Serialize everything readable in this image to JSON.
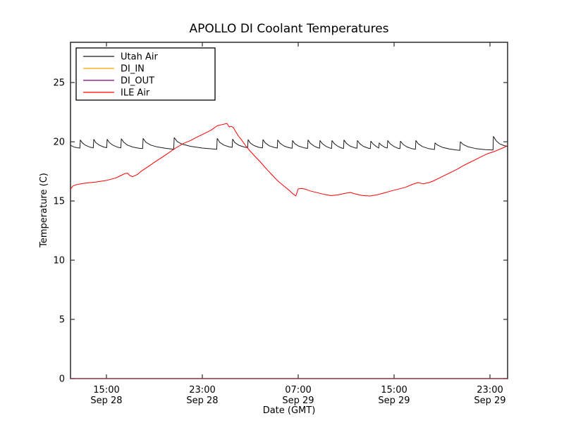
{
  "chart_data": {
    "type": "line",
    "title": "APOLLO DI Coolant Temperatures",
    "xlabel": "Date (GMT)",
    "ylabel": "Temperature (C)",
    "x_unit": "hours since Sep 28 00:00 GMT",
    "xlim": [
      12.0,
      48.47
    ],
    "ylim": [
      0,
      28.4
    ],
    "grid": false,
    "legend_position": "upper-left",
    "background_color": "#ffffff",
    "axis_color": "#2b2b2b",
    "y_ticks": [
      0,
      5,
      10,
      15,
      20,
      25
    ],
    "x_ticks": [
      {
        "value": 15,
        "time": "15:00",
        "date": "Sep 28"
      },
      {
        "value": 23,
        "time": "23:00",
        "date": "Sep 28"
      },
      {
        "value": 31,
        "time": "07:00",
        "date": "Sep 29"
      },
      {
        "value": 39,
        "time": "15:00",
        "date": "Sep 29"
      },
      {
        "value": 47,
        "time": "23:00",
        "date": "Sep 29"
      }
    ],
    "series": [
      {
        "name": "Utah Air",
        "color": "#1a1a1a",
        "opacity": 1,
        "points": [
          [
            12.0,
            19.7
          ],
          [
            12.3,
            19.55
          ],
          [
            12.55,
            19.5
          ],
          [
            12.78,
            19.47
          ],
          [
            12.82,
            20.15
          ],
          [
            13.0,
            19.9
          ],
          [
            13.25,
            19.7
          ],
          [
            13.6,
            19.55
          ],
          [
            13.9,
            19.48
          ],
          [
            13.94,
            20.2
          ],
          [
            14.12,
            19.92
          ],
          [
            14.4,
            19.72
          ],
          [
            14.75,
            19.56
          ],
          [
            15.02,
            19.5
          ],
          [
            15.06,
            20.2
          ],
          [
            15.25,
            19.92
          ],
          [
            15.55,
            19.7
          ],
          [
            15.9,
            19.55
          ],
          [
            16.2,
            19.48
          ],
          [
            16.24,
            20.25
          ],
          [
            16.45,
            19.95
          ],
          [
            16.75,
            19.72
          ],
          [
            17.2,
            19.55
          ],
          [
            17.7,
            19.45
          ],
          [
            18.02,
            19.42
          ],
          [
            18.06,
            20.28
          ],
          [
            18.3,
            19.95
          ],
          [
            18.7,
            19.72
          ],
          [
            19.2,
            19.57
          ],
          [
            19.9,
            19.45
          ],
          [
            20.61,
            19.37
          ],
          [
            20.65,
            20.35
          ],
          [
            20.9,
            20.02
          ],
          [
            21.3,
            19.8
          ],
          [
            22.0,
            19.62
          ],
          [
            23.0,
            19.47
          ],
          [
            24.2,
            19.37
          ],
          [
            24.24,
            20.28
          ],
          [
            24.45,
            19.95
          ],
          [
            24.8,
            19.72
          ],
          [
            25.2,
            19.58
          ],
          [
            25.49,
            19.53
          ],
          [
            25.53,
            20.22
          ],
          [
            25.72,
            19.93
          ],
          [
            26.05,
            19.7
          ],
          [
            26.5,
            19.55
          ],
          [
            26.78,
            19.5
          ],
          [
            26.82,
            20.18
          ],
          [
            27.0,
            19.9
          ],
          [
            27.32,
            19.68
          ],
          [
            27.72,
            19.53
          ],
          [
            28.02,
            19.48
          ],
          [
            28.06,
            20.18
          ],
          [
            28.26,
            19.9
          ],
          [
            28.58,
            19.66
          ],
          [
            29.0,
            19.52
          ],
          [
            29.25,
            19.47
          ],
          [
            29.29,
            20.15
          ],
          [
            29.5,
            19.87
          ],
          [
            29.82,
            19.64
          ],
          [
            30.22,
            19.5
          ],
          [
            30.49,
            19.45
          ],
          [
            30.53,
            20.1
          ],
          [
            30.72,
            19.84
          ],
          [
            31.02,
            19.64
          ],
          [
            31.5,
            19.49
          ],
          [
            31.78,
            19.44
          ],
          [
            31.82,
            20.15
          ],
          [
            32.02,
            19.87
          ],
          [
            32.32,
            19.64
          ],
          [
            32.62,
            19.5
          ],
          [
            32.78,
            19.46
          ],
          [
            32.82,
            20.1
          ],
          [
            33.02,
            19.84
          ],
          [
            33.32,
            19.61
          ],
          [
            33.62,
            19.48
          ],
          [
            33.78,
            19.44
          ],
          [
            33.82,
            20.1
          ],
          [
            34.02,
            19.84
          ],
          [
            34.32,
            19.61
          ],
          [
            34.62,
            19.47
          ],
          [
            34.78,
            19.44
          ],
          [
            34.82,
            20.15
          ],
          [
            35.02,
            19.87
          ],
          [
            35.32,
            19.64
          ],
          [
            35.72,
            19.49
          ],
          [
            35.9,
            19.45
          ],
          [
            35.94,
            20.1
          ],
          [
            36.14,
            19.84
          ],
          [
            36.44,
            19.61
          ],
          [
            36.82,
            19.47
          ],
          [
            37.02,
            19.43
          ],
          [
            37.06,
            20.05
          ],
          [
            37.26,
            19.8
          ],
          [
            37.52,
            19.6
          ],
          [
            37.72,
            19.47
          ],
          [
            37.76,
            19.9
          ],
          [
            37.96,
            19.7
          ],
          [
            38.22,
            19.54
          ],
          [
            38.43,
            19.47
          ],
          [
            38.47,
            20.1
          ],
          [
            38.67,
            19.83
          ],
          [
            38.97,
            19.61
          ],
          [
            39.3,
            19.46
          ],
          [
            39.49,
            19.42
          ],
          [
            39.53,
            20.05
          ],
          [
            39.74,
            19.79
          ],
          [
            40.04,
            19.58
          ],
          [
            40.45,
            19.43
          ],
          [
            40.78,
            19.37
          ],
          [
            40.82,
            20.1
          ],
          [
            41.02,
            19.83
          ],
          [
            41.35,
            19.6
          ],
          [
            41.85,
            19.43
          ],
          [
            42.37,
            19.35
          ],
          [
            42.41,
            19.9
          ],
          [
            42.65,
            19.7
          ],
          [
            43.05,
            19.52
          ],
          [
            43.6,
            19.4
          ],
          [
            44.2,
            19.3
          ],
          [
            44.49,
            19.27
          ],
          [
            44.53,
            20.0
          ],
          [
            44.75,
            19.78
          ],
          [
            45.15,
            19.58
          ],
          [
            45.8,
            19.43
          ],
          [
            46.6,
            19.33
          ],
          [
            47.25,
            19.3
          ],
          [
            47.29,
            20.45
          ],
          [
            47.52,
            20.08
          ],
          [
            47.78,
            19.84
          ],
          [
            48.12,
            19.7
          ],
          [
            48.47,
            19.6
          ]
        ]
      },
      {
        "name": "DI_IN",
        "color": "#ffa500",
        "opacity": 1,
        "points": [
          [
            12.0,
            0.0
          ],
          [
            48.47,
            0.0
          ]
        ]
      },
      {
        "name": "DI_OUT",
        "color": "#800080",
        "opacity": 0.65,
        "points": [
          [
            12.0,
            0.0
          ],
          [
            48.47,
            0.0
          ]
        ]
      },
      {
        "name": "ILE Air",
        "color": "#ff0000",
        "opacity": 1,
        "points": [
          [
            12.0,
            16.0
          ],
          [
            12.18,
            16.25
          ],
          [
            12.4,
            16.35
          ],
          [
            12.7,
            16.42
          ],
          [
            13.2,
            16.5
          ],
          [
            14.1,
            16.6
          ],
          [
            15.06,
            16.75
          ],
          [
            15.8,
            16.95
          ],
          [
            16.2,
            17.15
          ],
          [
            16.5,
            17.3
          ],
          [
            16.76,
            17.35
          ],
          [
            16.95,
            17.15
          ],
          [
            17.18,
            17.05
          ],
          [
            17.6,
            17.25
          ],
          [
            17.88,
            17.5
          ],
          [
            18.47,
            17.9
          ],
          [
            19.06,
            18.3
          ],
          [
            19.65,
            18.7
          ],
          [
            20.24,
            19.1
          ],
          [
            20.82,
            19.5
          ],
          [
            21.41,
            19.85
          ],
          [
            22.0,
            20.1
          ],
          [
            22.47,
            20.35
          ],
          [
            23.18,
            20.7
          ],
          [
            23.76,
            21.0
          ],
          [
            24.24,
            21.35
          ],
          [
            24.65,
            21.45
          ],
          [
            25.06,
            21.55
          ],
          [
            25.24,
            21.25
          ],
          [
            25.41,
            21.3
          ],
          [
            25.59,
            21.2
          ],
          [
            25.76,
            20.9
          ],
          [
            26.0,
            20.5
          ],
          [
            26.24,
            20.2
          ],
          [
            26.59,
            19.7
          ],
          [
            27.0,
            19.2
          ],
          [
            27.41,
            18.75
          ],
          [
            27.88,
            18.25
          ],
          [
            28.35,
            17.7
          ],
          [
            28.82,
            17.2
          ],
          [
            29.29,
            16.7
          ],
          [
            29.76,
            16.3
          ],
          [
            30.24,
            15.9
          ],
          [
            30.53,
            15.62
          ],
          [
            30.71,
            15.5
          ],
          [
            30.8,
            15.42
          ],
          [
            31.0,
            16.02
          ],
          [
            31.3,
            16.05
          ],
          [
            31.59,
            16.0
          ],
          [
            32.0,
            15.85
          ],
          [
            32.59,
            15.7
          ],
          [
            33.18,
            15.55
          ],
          [
            33.76,
            15.45
          ],
          [
            34.35,
            15.52
          ],
          [
            34.94,
            15.65
          ],
          [
            35.35,
            15.72
          ],
          [
            35.82,
            15.58
          ],
          [
            36.41,
            15.45
          ],
          [
            37.0,
            15.42
          ],
          [
            37.59,
            15.52
          ],
          [
            38.18,
            15.68
          ],
          [
            38.76,
            15.85
          ],
          [
            39.35,
            16.0
          ],
          [
            39.94,
            16.15
          ],
          [
            40.53,
            16.4
          ],
          [
            41.0,
            16.55
          ],
          [
            41.41,
            16.45
          ],
          [
            41.9,
            16.55
          ],
          [
            42.3,
            16.7
          ],
          [
            42.8,
            16.95
          ],
          [
            43.3,
            17.2
          ],
          [
            43.8,
            17.45
          ],
          [
            44.3,
            17.7
          ],
          [
            44.8,
            18.0
          ],
          [
            45.3,
            18.25
          ],
          [
            45.8,
            18.5
          ],
          [
            46.3,
            18.75
          ],
          [
            46.8,
            19.0
          ],
          [
            47.29,
            19.15
          ],
          [
            47.76,
            19.35
          ],
          [
            48.12,
            19.5
          ],
          [
            48.41,
            19.65
          ]
        ]
      }
    ]
  }
}
